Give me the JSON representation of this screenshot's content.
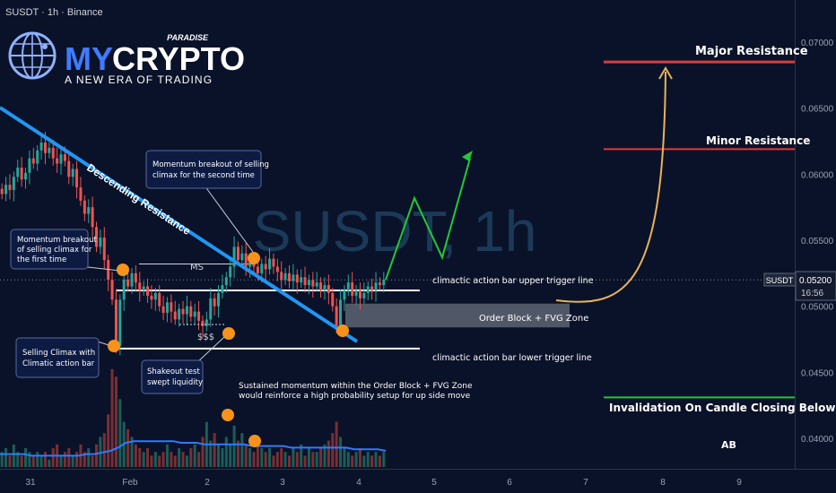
{
  "header": {
    "symbol_line": "SUSDT · 1h · Binance"
  },
  "logo": {
    "brand_my": "MY",
    "brand_crypto": "CRYPTO",
    "brand_super": "PARADISE",
    "tagline": "A NEW ERA OF TRADING"
  },
  "watermark": "SUSDT, 1h",
  "price_tag": {
    "symbol": "SUSDT",
    "price": "0.05200",
    "countdown": "16:56"
  },
  "labels": {
    "descending_resistance": "Descending Resistance",
    "ms": "MS",
    "sss": "$$$",
    "upper_trigger": "climactic action bar upper trigger line",
    "lower_trigger": "climactic action bar lower trigger line",
    "order_block": "Order Block + FVG Zone",
    "major_resistance": "Major Resistance",
    "minor_resistance": "Minor Resistance",
    "invalidation": "Invalidation On Candle Closing Below",
    "ab": "AB",
    "sustained_1": "Sustained momentum within the Order Block + FVG Zone",
    "sustained_2": "would reinforce a high probability setup for up side move"
  },
  "callouts": {
    "breakout_second_1": "Momentum breakout of selling",
    "breakout_second_2": "climax for the second time",
    "breakout_first_1": "Momentum breakout",
    "breakout_first_2": "of selling climax for",
    "breakout_first_3": "the first time",
    "selling_climax_1": "Selling Climax with",
    "selling_climax_2": "Climatic action bar",
    "shakeout_1": "Shakeout test",
    "shakeout_2": "swept liquidity"
  },
  "colors": {
    "background": "#0a1229",
    "bull": "#26a69a",
    "bear": "#ef5350",
    "descending_line": "#2196f3",
    "marker": "#f7931a",
    "projection": "#21c93a",
    "arc": "#e7b35a",
    "resistance": "#e53935",
    "invalidation": "#21c93a"
  },
  "chart_data": {
    "type": "candlestick",
    "symbol": "SUSDT",
    "timeframe": "1h",
    "exchange": "Binance",
    "x_ticks": [
      "31",
      "Feb",
      "2",
      "3",
      "4",
      "5",
      "6",
      "7",
      "8",
      "9"
    ],
    "y_ticks": [
      "0.07000",
      "0.06500",
      "0.06000",
      "0.05500",
      "0.05000",
      "0.04500",
      "0.04000"
    ],
    "ylim": [
      0.0376,
      0.0725
    ],
    "last_price": 0.052,
    "levels": {
      "major_resistance": 0.0685,
      "minor_resistance": 0.0619,
      "upper_trigger": 0.0512,
      "lower_trigger": 0.0468,
      "order_block_top": 0.0502,
      "order_block_bottom": 0.0484,
      "invalidation": 0.0431,
      "ms": 0.0532
    },
    "candles_close": [
      0.0585,
      0.0592,
      0.0588,
      0.0598,
      0.0605,
      0.0596,
      0.0601,
      0.0612,
      0.0608,
      0.0618,
      0.0624,
      0.0616,
      0.062,
      0.0612,
      0.0608,
      0.0615,
      0.061,
      0.0598,
      0.0604,
      0.059,
      0.058,
      0.057,
      0.0575,
      0.056,
      0.0545,
      0.0552,
      0.0535,
      0.052,
      0.0505,
      0.047,
      0.0505,
      0.052,
      0.0515,
      0.0525,
      0.0518,
      0.0512,
      0.0515,
      0.0508,
      0.0505,
      0.051,
      0.05,
      0.0495,
      0.0503,
      0.0496,
      0.049,
      0.0498,
      0.0494,
      0.05,
      0.0492,
      0.0496,
      0.0489,
      0.0485,
      0.049,
      0.0506,
      0.05,
      0.051,
      0.0516,
      0.0522,
      0.053,
      0.0545,
      0.0535,
      0.054,
      0.053,
      0.0535,
      0.053,
      0.0525,
      0.0532,
      0.0528,
      0.0536,
      0.053,
      0.0526,
      0.052,
      0.0525,
      0.0519,
      0.0524,
      0.0518,
      0.0522,
      0.0516,
      0.052,
      0.0515,
      0.0518,
      0.0512,
      0.0516,
      0.051,
      0.05,
      0.0485,
      0.0505,
      0.0512,
      0.0518,
      0.0508,
      0.0512,
      0.0506,
      0.051,
      0.0515,
      0.0512,
      0.0518,
      0.0516,
      0.052
    ],
    "projection_path": [
      0.052,
      0.0582,
      0.0537,
      0.0612
    ],
    "volume": [
      4,
      5,
      3,
      6,
      4,
      3,
      5,
      4,
      3,
      4,
      3,
      4,
      2,
      5,
      6,
      3,
      4,
      5,
      3,
      4,
      6,
      4,
      5,
      3,
      6,
      8,
      9,
      14,
      26,
      24,
      18,
      12,
      10,
      8,
      6,
      5,
      4,
      5,
      3,
      4,
      3,
      4,
      6,
      4,
      3,
      5,
      4,
      3,
      5,
      6,
      4,
      8,
      12,
      7,
      9,
      6,
      5,
      8,
      6,
      11,
      7,
      9,
      6,
      5,
      4,
      6,
      5,
      4,
      5,
      3,
      4,
      5,
      4,
      3,
      5,
      4,
      6,
      3,
      5,
      4,
      4,
      5,
      6,
      7,
      9,
      12,
      8,
      5,
      4,
      3,
      4,
      5,
      3,
      4,
      3,
      4,
      3,
      4
    ],
    "volume_ma": [
      8,
      8,
      8,
      8,
      7,
      7,
      7,
      7,
      7,
      7,
      7,
      8,
      8,
      9,
      10,
      12,
      15,
      16,
      16,
      16,
      16,
      16,
      16,
      15,
      15,
      15,
      14,
      14,
      14,
      14,
      14,
      14,
      13,
      13,
      13,
      13,
      13,
      12,
      12,
      12,
      12,
      12,
      12,
      12,
      12,
      11,
      11,
      11,
      11,
      10
    ]
  }
}
